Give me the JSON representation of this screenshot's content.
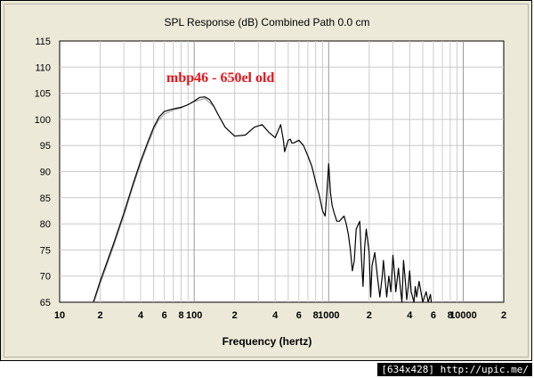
{
  "chart_data": {
    "type": "line",
    "title": "SPL Response (dB)   Combined   Path 0.0 cm",
    "xlabel": "Frequency (hertz)",
    "ylabel": "",
    "annotation": "mbp46 - 650el old",
    "x_scale": "log",
    "xlim": [
      10,
      20000
    ],
    "ylim": [
      65,
      115
    ],
    "grid": true,
    "y_ticks": [
      "65",
      "70",
      "75",
      "80",
      "85",
      "90",
      "95",
      "100",
      "105",
      "110",
      "115"
    ],
    "x_ticks": [
      {
        "value": 10,
        "label": "10"
      },
      {
        "value": 20,
        "label": "2"
      },
      {
        "value": 40,
        "label": "4"
      },
      {
        "value": 60,
        "label": "6"
      },
      {
        "value": 80,
        "label": "8"
      },
      {
        "value": 100,
        "label": "100"
      },
      {
        "value": 200,
        "label": "2"
      },
      {
        "value": 400,
        "label": "4"
      },
      {
        "value": 600,
        "label": "6"
      },
      {
        "value": 800,
        "label": "8"
      },
      {
        "value": 1000,
        "label": "1000"
      },
      {
        "value": 2000,
        "label": "2"
      },
      {
        "value": 4000,
        "label": "4"
      },
      {
        "value": 6000,
        "label": "6"
      },
      {
        "value": 8000,
        "label": "8"
      },
      {
        "value": 10000,
        "label": "10000"
      },
      {
        "value": 20000,
        "label": "2"
      }
    ],
    "series": [
      {
        "color": "#000000",
        "x": [
          17.8,
          20,
          25,
          30,
          35,
          40,
          45,
          50,
          55,
          60,
          65,
          70,
          80,
          90,
          100,
          110,
          120,
          130,
          140,
          150,
          170,
          200,
          240,
          280,
          320,
          360,
          400,
          420,
          440,
          460,
          470,
          480,
          500,
          520,
          530,
          550,
          600,
          650,
          700,
          750,
          800,
          850,
          900,
          940,
          970,
          1000,
          1030,
          1060,
          1100,
          1150,
          1200,
          1250,
          1300,
          1350,
          1400,
          1450,
          1500,
          1550,
          1600,
          1700,
          1750,
          1800,
          1850,
          1900,
          2000,
          2050,
          2100,
          2200,
          2300,
          2400,
          2500,
          2550,
          2700,
          2800,
          2900,
          3000,
          3100,
          3150,
          3300,
          3400,
          3500,
          3600,
          3700,
          3800,
          3900,
          4000,
          4100,
          4300,
          4400,
          4500,
          4700,
          5000,
          5300,
          5500,
          5700,
          5800
        ],
        "y": [
          65,
          69,
          76,
          82,
          87.5,
          92,
          95.5,
          98.5,
          100.5,
          101.5,
          101.8,
          102,
          102.3,
          102.8,
          103.5,
          104.2,
          104.3,
          103.8,
          102.5,
          101,
          98.5,
          96.8,
          97,
          98.5,
          99,
          97.5,
          96.5,
          97.8,
          99,
          96,
          93.8,
          94.5,
          96,
          96.2,
          95.5,
          95.5,
          96,
          95,
          93,
          91,
          88,
          85.5,
          82.5,
          81.5,
          86,
          91.5,
          86,
          83.5,
          82,
          80.5,
          80.5,
          81,
          81.5,
          80,
          78,
          75,
          71,
          73,
          79,
          80.5,
          73.5,
          68,
          75.5,
          79,
          74.5,
          66,
          72,
          74.5,
          70,
          66,
          70,
          73,
          66,
          70,
          67,
          74,
          70,
          67,
          71.5,
          68,
          65,
          73,
          69.5,
          65.5,
          68,
          71,
          67,
          65,
          68,
          66,
          69,
          65,
          67,
          65,
          66.5,
          65
        ]
      },
      {
        "color": "#a8a8a8",
        "x": [
          18,
          20,
          25,
          30,
          35,
          40,
          45,
          50,
          55,
          60,
          70,
          80,
          100,
          120,
          140
        ],
        "y": [
          65,
          68.5,
          75.5,
          81.5,
          87,
          91.5,
          95,
          98,
          100,
          101,
          101.8,
          102.2,
          103.4,
          104,
          102.5
        ]
      }
    ]
  }
}
